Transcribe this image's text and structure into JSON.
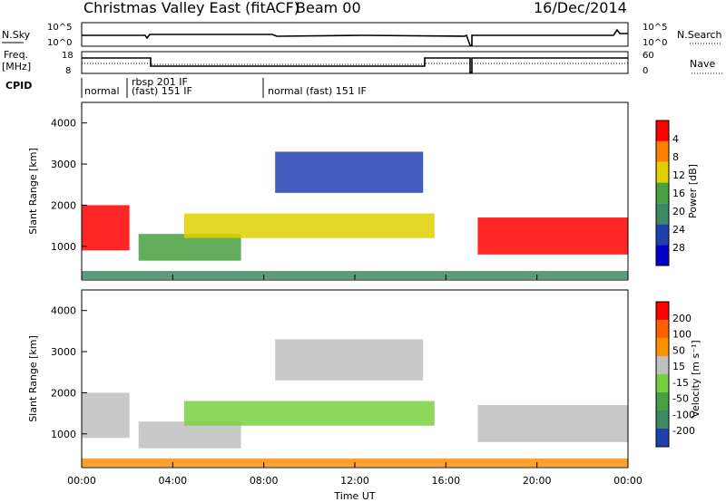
{
  "header": {
    "title": "Christmas Valley East (fitACF)",
    "beam": "Beam 00",
    "date": "16/Dec/2014"
  },
  "top_panels": {
    "nsky_label": "N.Sky",
    "nsearch_label": "N.Search",
    "noise_ticks_left": [
      "10^5",
      "10^0"
    ],
    "noise_ticks_right": [
      "10^5",
      "10^0"
    ],
    "freq_label": "Freq.",
    "freq_unit": "[MHz]",
    "freq_ticks": [
      "18",
      "8"
    ],
    "nave_label": "Nave",
    "nave_ticks": [
      "60",
      "0"
    ],
    "cpid_label": "CPID",
    "cpid_segments": [
      {
        "text": "normal",
        "start": 0.0
      },
      {
        "text": "rbsp 201 IF",
        "start": 2.0
      },
      {
        "text": "(fast) 151 IF",
        "start": 2.0
      },
      {
        "text": "normal (fast) 151 IF",
        "start": 8.0
      }
    ]
  },
  "chart_data": [
    {
      "type": "heatmap",
      "name": "Power",
      "ylabel": "Slant Range [km]",
      "ylim": [
        180,
        4500
      ],
      "yticks": [
        1000,
        2000,
        3000,
        4000
      ],
      "xlim": [
        0,
        24
      ],
      "colorbar": {
        "label": "Power [dB]",
        "ticks": [
          "4",
          "8",
          "12",
          "16",
          "20",
          "24",
          "28"
        ],
        "colors": [
          "#0000c8",
          "#2040b0",
          "#3c8a64",
          "#48a040",
          "#e0d000",
          "#ff8000",
          "#ff0000"
        ]
      },
      "bands": [
        {
          "t0": 0.0,
          "t1": 2.1,
          "r0": 900,
          "r1": 2000,
          "level": 6
        },
        {
          "t0": 2.5,
          "t1": 7.0,
          "r0": 650,
          "r1": 1300,
          "level": 3
        },
        {
          "t0": 4.5,
          "t1": 15.5,
          "r0": 1200,
          "r1": 1800,
          "level": 4
        },
        {
          "t0": 8.5,
          "t1": 15.0,
          "r0": 2300,
          "r1": 3300,
          "level": 1
        },
        {
          "t0": 17.4,
          "t1": 24.0,
          "r0": 800,
          "r1": 1700,
          "level": 6
        },
        {
          "t0": 0.0,
          "t1": 24.0,
          "r0": 200,
          "r1": 400,
          "level": 2
        }
      ]
    },
    {
      "type": "heatmap",
      "name": "Velocity",
      "ylabel": "Slant Range [km]",
      "xlabel": "Time UT",
      "ylim": [
        180,
        4500
      ],
      "yticks": [
        1000,
        2000,
        3000,
        4000
      ],
      "xlim": [
        0,
        24
      ],
      "xticks": [
        "00:00",
        "04:00",
        "08:00",
        "12:00",
        "16:00",
        "20:00",
        "00:00"
      ],
      "colorbar": {
        "label": "Velocity [m s⁻¹]",
        "ticks": [
          "200",
          "100",
          "50",
          "15",
          "-15",
          "-50",
          "-100",
          "-200"
        ],
        "colors": [
          "#2040b0",
          "#3c8a64",
          "#48a040",
          "#78d040",
          "#c0c0c0",
          "#ff9000",
          "#ff6000",
          "#ff0000"
        ]
      },
      "bands": [
        {
          "t0": 0.0,
          "t1": 2.1,
          "r0": 900,
          "r1": 2000,
          "level": 4
        },
        {
          "t0": 2.5,
          "t1": 7.0,
          "r0": 650,
          "r1": 1300,
          "level": 4
        },
        {
          "t0": 4.5,
          "t1": 15.5,
          "r0": 1200,
          "r1": 1800,
          "level": 3
        },
        {
          "t0": 8.5,
          "t1": 15.0,
          "r0": 2300,
          "r1": 3300,
          "level": 4
        },
        {
          "t0": 17.4,
          "t1": 24.0,
          "r0": 800,
          "r1": 1700,
          "level": 4
        },
        {
          "t0": 0.0,
          "t1": 24.0,
          "r0": 200,
          "r1": 400,
          "level": 5
        }
      ]
    }
  ]
}
